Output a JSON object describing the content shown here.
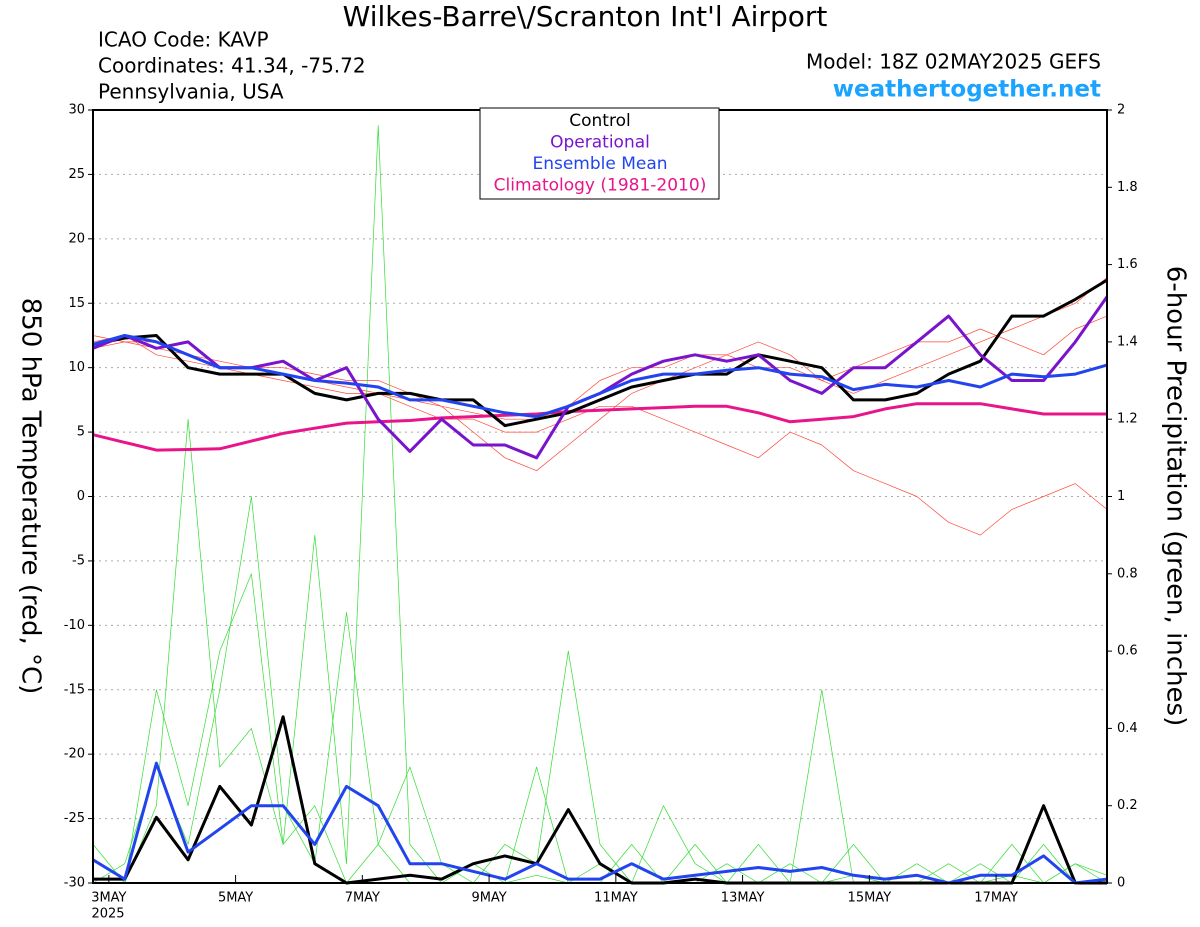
{
  "chart_data": {
    "type": "line",
    "title": "Wilkes-Barre\\/Scranton Int'l Airport",
    "annotations": [
      "ICAO Code: KAVP",
      "Coordinates: 41.34, -75.72",
      "Pennsylvania, USA",
      "Model: 18Z 02MAY2025 GEFS",
      "weathertogether.net"
    ],
    "ylabel": "850 hPa Temperature (red, °C)",
    "y2label": "6-hour Precipitation (green, inches)",
    "x_year": "2025",
    "x": [
      2.75,
      3.25,
      3.75,
      4.25,
      4.75,
      5.25,
      5.75,
      6.25,
      6.75,
      7.25,
      7.75,
      8.25,
      8.75,
      9.25,
      9.75,
      10.25,
      10.75,
      11.25,
      11.75,
      12.25,
      12.75,
      13.25,
      13.75,
      14.25,
      14.75,
      15.25,
      15.75,
      16.25,
      16.75,
      17.25,
      17.75,
      18.25,
      18.75
    ],
    "xlim": [
      2.75,
      18.75
    ],
    "xticks": [
      {
        "value": 3,
        "label": "3MAY"
      },
      {
        "value": 5,
        "label": "5MAY"
      },
      {
        "value": 7,
        "label": "7MAY"
      },
      {
        "value": 9,
        "label": "9MAY"
      },
      {
        "value": 11,
        "label": "11MAY"
      },
      {
        "value": 13,
        "label": "13MAY"
      },
      {
        "value": 15,
        "label": "15MAY"
      },
      {
        "value": 17,
        "label": "17MAY"
      }
    ],
    "ylim": [
      -30,
      30
    ],
    "yticks": [
      -30,
      -25,
      -20,
      -15,
      -10,
      -5,
      0,
      5,
      10,
      15,
      20,
      25,
      30
    ],
    "y2lim": [
      0,
      2
    ],
    "y2ticks": [
      0,
      0.2,
      0.4,
      0.6,
      0.8,
      1,
      1.2,
      1.4,
      1.6,
      1.8,
      2
    ],
    "grid": true,
    "legend": "top",
    "series": [
      {
        "color": "#ff4a3a",
        "width": 0.7,
        "values": [
          12,
          12.5,
          11,
          10.5,
          10,
          10,
          9.5,
          9,
          8.5,
          8,
          7.5,
          7,
          5,
          3,
          2,
          4,
          6,
          8,
          9,
          10,
          11,
          12,
          11,
          9,
          8,
          9,
          10,
          11,
          12,
          13,
          14,
          15,
          17
        ]
      },
      {
        "color": "#ff4a3a",
        "width": 0.7,
        "values": [
          12.5,
          12,
          11.5,
          11,
          10,
          9.5,
          9,
          8.5,
          8,
          8,
          7,
          6,
          6,
          5,
          5,
          6,
          7,
          7,
          6,
          5,
          4,
          3,
          5,
          4,
          2,
          1,
          0,
          -2,
          -3,
          -1,
          0,
          1,
          -1
        ]
      },
      {
        "color": "#ff4a3a",
        "width": 0.7,
        "values": [
          11.5,
          12,
          12,
          11,
          10.5,
          10,
          10,
          9.5,
          9,
          9,
          8,
          7,
          6.5,
          6,
          6,
          7,
          9,
          10,
          10,
          11,
          11,
          10,
          10,
          9,
          10,
          11,
          12,
          12,
          13,
          12,
          11,
          13,
          14
        ]
      },
      {
        "color": "#33dd33",
        "width": 0.7,
        "axis": "y2",
        "values": [
          0,
          0,
          0.2,
          1.2,
          0.3,
          0.4,
          0.1,
          0.2,
          0,
          0.1,
          0,
          0,
          0,
          0,
          0.02,
          0,
          0,
          0.1,
          0,
          0,
          0.05,
          0,
          0,
          0.5,
          0,
          0,
          0,
          0,
          0.05,
          0,
          0.1,
          0,
          0
        ]
      },
      {
        "color": "#33dd33",
        "width": 0.7,
        "axis": "y2",
        "values": [
          0.1,
          0,
          0.5,
          0.2,
          0.6,
          0.8,
          0.1,
          0.9,
          0.05,
          1.96,
          0.1,
          0,
          0.05,
          0,
          0.3,
          0,
          0.05,
          0,
          0,
          0.1,
          0,
          0,
          0.05,
          0,
          0.1,
          0,
          0,
          0.05,
          0,
          0.02,
          0,
          0.05,
          0
        ]
      },
      {
        "color": "#33dd33",
        "width": 0.7,
        "axis": "y2",
        "values": [
          0,
          0.05,
          0.3,
          0.1,
          0.5,
          1.0,
          0.2,
          0.05,
          0.7,
          0.1,
          0.3,
          0.05,
          0,
          0.1,
          0.05,
          0.6,
          0.1,
          0,
          0.2,
          0.05,
          0,
          0.1,
          0,
          0,
          0.02,
          0,
          0.05,
          0,
          0,
          0.1,
          0,
          0.05,
          0.02
        ]
      },
      {
        "name": "Climatology (1981-2010)",
        "color": "#e8158a",
        "width": 3,
        "values": [
          4.8,
          4.2,
          3.6,
          3.65,
          3.7,
          4.3,
          4.9,
          5.3,
          5.7,
          5.8,
          5.9,
          6.1,
          6.2,
          6.3,
          6.4,
          6.6,
          6.7,
          6.8,
          6.9,
          7.0,
          7.0,
          6.5,
          5.8,
          6.0,
          6.2,
          6.8,
          7.2,
          7.2,
          7.2,
          6.8,
          6.4,
          6.4,
          6.4
        ]
      },
      {
        "name": "Control",
        "color": "#000000",
        "width": 3,
        "values": [
          11.8,
          12.3,
          12.5,
          10,
          9.5,
          9.5,
          9.5,
          8,
          7.5,
          8,
          8,
          7.5,
          7.5,
          5.5,
          6,
          6.5,
          7.5,
          8.5,
          9,
          9.5,
          9.5,
          11,
          10.5,
          10,
          7.5,
          7.5,
          8,
          9.5,
          10.5,
          14,
          14,
          15.3,
          16.8
        ]
      },
      {
        "name": "Operational",
        "color": "#7a14cc",
        "width": 3,
        "values": [
          11.5,
          12.5,
          11.5,
          12,
          10,
          10,
          10.5,
          9,
          10,
          6,
          3.5,
          6,
          4,
          4,
          3,
          7,
          8,
          9.5,
          10.5,
          11,
          10.5,
          11,
          9,
          8,
          10,
          10,
          12,
          14,
          11,
          9,
          9,
          12,
          15.5
        ]
      },
      {
        "name": "Ensemble Mean",
        "color": "#2244ee",
        "width": 3,
        "values": [
          11.8,
          12.5,
          12,
          11,
          10,
          10,
          9.5,
          9,
          8.8,
          8.5,
          7.5,
          7.5,
          7,
          6.5,
          6.2,
          7,
          8,
          9,
          9.5,
          9.5,
          9.8,
          10,
          9.5,
          9.3,
          8.3,
          8.7,
          8.5,
          9,
          8.5,
          9.5,
          9.3,
          9.5,
          10.2
        ]
      },
      {
        "color": "#000000",
        "width": 3,
        "axis": "y2",
        "values": [
          0.01,
          0.01,
          0.17,
          0.06,
          0.25,
          0.15,
          0.43,
          0.05,
          0,
          0.01,
          0.02,
          0.01,
          0.05,
          0.07,
          0.05,
          0.19,
          0.05,
          0,
          0,
          0.01,
          0,
          0,
          0,
          0,
          0,
          0,
          0,
          0,
          0,
          0,
          0.2,
          0,
          0
        ]
      },
      {
        "color": "#2244ee",
        "width": 3,
        "axis": "y2",
        "values": [
          0.06,
          0.01,
          0.31,
          0.08,
          0.14,
          0.2,
          0.2,
          0.1,
          0.25,
          0.2,
          0.05,
          0.05,
          0.03,
          0.01,
          0.05,
          0.01,
          0.01,
          0.05,
          0.01,
          0.02,
          0.03,
          0.04,
          0.03,
          0.04,
          0.02,
          0.01,
          0.02,
          0,
          0.02,
          0.02,
          0.07,
          0,
          0.01
        ]
      }
    ]
  }
}
